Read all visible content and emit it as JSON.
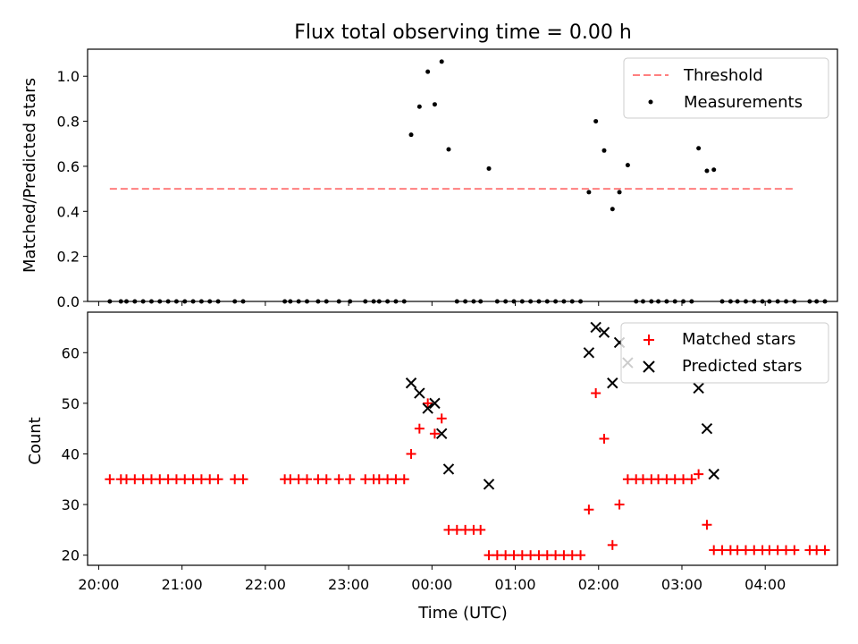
{
  "chart_data": [
    {
      "type": "scatter",
      "title": "Flux total observing time = 0.00 h",
      "ylabel": "Matched/Predicted stars",
      "ylim": [
        0,
        1.12
      ],
      "xlim": [
        "19:52",
        "04:52"
      ],
      "yticks": [
        "0.0",
        "0.2",
        "0.4",
        "0.6",
        "0.8",
        "1.0"
      ],
      "grid": false,
      "legend_position": "top-right",
      "legend": [
        {
          "label": "Threshold",
          "marker": "dashed-line",
          "color": "#ff7f7f"
        },
        {
          "label": "Measurements",
          "marker": "dot",
          "color": "#000000"
        }
      ],
      "threshold": {
        "name": "Threshold",
        "value": 0.5,
        "x_start": "20:08",
        "x_end": "04:20"
      },
      "series": [
        {
          "name": "Measurements",
          "color": "#000000",
          "points": [
            [
              "20:08",
              0.0
            ],
            [
              "20:16",
              0.0
            ],
            [
              "20:20",
              0.0
            ],
            [
              "20:26",
              0.0
            ],
            [
              "20:32",
              0.0
            ],
            [
              "20:38",
              0.0
            ],
            [
              "20:44",
              0.0
            ],
            [
              "20:50",
              0.0
            ],
            [
              "20:56",
              0.0
            ],
            [
              "21:02",
              0.0
            ],
            [
              "21:08",
              0.0
            ],
            [
              "21:14",
              0.0
            ],
            [
              "21:20",
              0.0
            ],
            [
              "21:26",
              0.0
            ],
            [
              "21:38",
              0.0
            ],
            [
              "21:44",
              0.0
            ],
            [
              "22:14",
              0.0
            ],
            [
              "22:18",
              0.0
            ],
            [
              "22:24",
              0.0
            ],
            [
              "22:30",
              0.0
            ],
            [
              "22:38",
              0.0
            ],
            [
              "22:44",
              0.0
            ],
            [
              "22:53",
              0.0
            ],
            [
              "23:01",
              0.0
            ],
            [
              "23:12",
              0.0
            ],
            [
              "23:18",
              0.0
            ],
            [
              "23:22",
              0.0
            ],
            [
              "23:28",
              0.0
            ],
            [
              "23:34",
              0.0
            ],
            [
              "23:40",
              0.0
            ],
            [
              "23:45",
              0.74
            ],
            [
              "23:51",
              0.865
            ],
            [
              "23:57",
              1.02
            ],
            [
              "00:02",
              0.875
            ],
            [
              "00:07",
              1.065
            ],
            [
              "00:12",
              0.675
            ],
            [
              "00:18",
              0.0
            ],
            [
              "00:24",
              0.0
            ],
            [
              "00:30",
              0.0
            ],
            [
              "00:35",
              0.0
            ],
            [
              "00:41",
              0.59
            ],
            [
              "00:47",
              0.0
            ],
            [
              "00:53",
              0.0
            ],
            [
              "00:59",
              0.0
            ],
            [
              "01:05",
              0.0
            ],
            [
              "01:11",
              0.0
            ],
            [
              "01:17",
              0.0
            ],
            [
              "01:23",
              0.0
            ],
            [
              "01:29",
              0.0
            ],
            [
              "01:35",
              0.0
            ],
            [
              "01:41",
              0.0
            ],
            [
              "01:47",
              0.0
            ],
            [
              "01:53",
              0.485
            ],
            [
              "01:58",
              0.8
            ],
            [
              "02:04",
              0.67
            ],
            [
              "02:10",
              0.41
            ],
            [
              "02:15",
              0.485
            ],
            [
              "02:21",
              0.605
            ],
            [
              "02:27",
              0.0
            ],
            [
              "02:32",
              0.0
            ],
            [
              "02:38",
              0.0
            ],
            [
              "02:43",
              0.0
            ],
            [
              "02:49",
              0.0
            ],
            [
              "02:55",
              0.0
            ],
            [
              "03:01",
              0.0
            ],
            [
              "03:07",
              0.0
            ],
            [
              "03:12",
              0.68
            ],
            [
              "03:18",
              0.58
            ],
            [
              "03:23",
              0.585
            ],
            [
              "03:29",
              0.0
            ],
            [
              "03:35",
              0.0
            ],
            [
              "03:40",
              0.0
            ],
            [
              "03:46",
              0.0
            ],
            [
              "03:52",
              0.0
            ],
            [
              "03:58",
              0.0
            ],
            [
              "04:03",
              0.0
            ],
            [
              "04:09",
              0.0
            ],
            [
              "04:15",
              0.0
            ],
            [
              "04:21",
              0.0
            ],
            [
              "04:32",
              0.0
            ],
            [
              "04:37",
              0.0
            ],
            [
              "04:43",
              0.0
            ]
          ]
        }
      ]
    },
    {
      "type": "scatter",
      "title": "",
      "xlabel": "Time (UTC)",
      "ylabel": "Count",
      "ylim": [
        18,
        68
      ],
      "xlim": [
        "19:52",
        "04:52"
      ],
      "xticks": [
        "20:00",
        "21:00",
        "22:00",
        "23:00",
        "00:00",
        "01:00",
        "02:00",
        "03:00",
        "04:00"
      ],
      "yticks": [
        "20",
        "30",
        "40",
        "50",
        "60"
      ],
      "grid": false,
      "legend_position": "top-right",
      "legend": [
        {
          "label": "Matched stars",
          "marker": "plus",
          "color": "#ff0000"
        },
        {
          "label": "Predicted stars",
          "marker": "x",
          "color": "#000000"
        }
      ],
      "series": [
        {
          "name": "Matched stars",
          "marker": "plus",
          "color": "#ff0000",
          "points": [
            [
              "20:08",
              35
            ],
            [
              "20:16",
              35
            ],
            [
              "20:20",
              35
            ],
            [
              "20:26",
              35
            ],
            [
              "20:32",
              35
            ],
            [
              "20:38",
              35
            ],
            [
              "20:44",
              35
            ],
            [
              "20:50",
              35
            ],
            [
              "20:56",
              35
            ],
            [
              "21:02",
              35
            ],
            [
              "21:08",
              35
            ],
            [
              "21:14",
              35
            ],
            [
              "21:20",
              35
            ],
            [
              "21:26",
              35
            ],
            [
              "21:38",
              35
            ],
            [
              "21:44",
              35
            ],
            [
              "22:14",
              35
            ],
            [
              "22:18",
              35
            ],
            [
              "22:24",
              35
            ],
            [
              "22:30",
              35
            ],
            [
              "22:38",
              35
            ],
            [
              "22:44",
              35
            ],
            [
              "22:53",
              35
            ],
            [
              "23:01",
              35
            ],
            [
              "23:12",
              35
            ],
            [
              "23:18",
              35
            ],
            [
              "23:22",
              35
            ],
            [
              "23:28",
              35
            ],
            [
              "23:34",
              35
            ],
            [
              "23:40",
              35
            ],
            [
              "23:45",
              40
            ],
            [
              "23:51",
              45
            ],
            [
              "23:57",
              50
            ],
            [
              "00:02",
              44
            ],
            [
              "00:07",
              47
            ],
            [
              "00:12",
              25
            ],
            [
              "00:18",
              25
            ],
            [
              "00:24",
              25
            ],
            [
              "00:30",
              25
            ],
            [
              "00:35",
              25
            ],
            [
              "00:41",
              20
            ],
            [
              "00:47",
              20
            ],
            [
              "00:53",
              20
            ],
            [
              "00:59",
              20
            ],
            [
              "01:05",
              20
            ],
            [
              "01:11",
              20
            ],
            [
              "01:17",
              20
            ],
            [
              "01:23",
              20
            ],
            [
              "01:29",
              20
            ],
            [
              "01:35",
              20
            ],
            [
              "01:41",
              20
            ],
            [
              "01:47",
              20
            ],
            [
              "01:53",
              29
            ],
            [
              "01:58",
              52
            ],
            [
              "02:04",
              43
            ],
            [
              "02:10",
              22
            ],
            [
              "02:15",
              30
            ],
            [
              "02:21",
              35
            ],
            [
              "02:27",
              35
            ],
            [
              "02:32",
              35
            ],
            [
              "02:38",
              35
            ],
            [
              "02:43",
              35
            ],
            [
              "02:49",
              35
            ],
            [
              "02:55",
              35
            ],
            [
              "03:01",
              35
            ],
            [
              "03:07",
              35
            ],
            [
              "03:12",
              36
            ],
            [
              "03:18",
              26
            ],
            [
              "03:23",
              21
            ],
            [
              "03:29",
              21
            ],
            [
              "03:35",
              21
            ],
            [
              "03:40",
              21
            ],
            [
              "03:46",
              21
            ],
            [
              "03:52",
              21
            ],
            [
              "03:58",
              21
            ],
            [
              "04:03",
              21
            ],
            [
              "04:09",
              21
            ],
            [
              "04:15",
              21
            ],
            [
              "04:21",
              21
            ],
            [
              "04:32",
              21
            ],
            [
              "04:37",
              21
            ],
            [
              "04:43",
              21
            ]
          ]
        },
        {
          "name": "Predicted stars",
          "marker": "x",
          "color": "#000000",
          "points": [
            [
              "23:45",
              54
            ],
            [
              "23:51",
              52
            ],
            [
              "23:57",
              49
            ],
            [
              "00:02",
              50
            ],
            [
              "00:07",
              44
            ],
            [
              "00:12",
              37
            ],
            [
              "00:41",
              34
            ],
            [
              "01:53",
              60
            ],
            [
              "01:58",
              65
            ],
            [
              "02:04",
              64
            ],
            [
              "02:10",
              54
            ],
            [
              "02:15",
              62
            ],
            [
              "02:21",
              58
            ],
            [
              "03:12",
              53
            ],
            [
              "03:18",
              45
            ],
            [
              "03:23",
              36
            ]
          ]
        }
      ]
    }
  ]
}
